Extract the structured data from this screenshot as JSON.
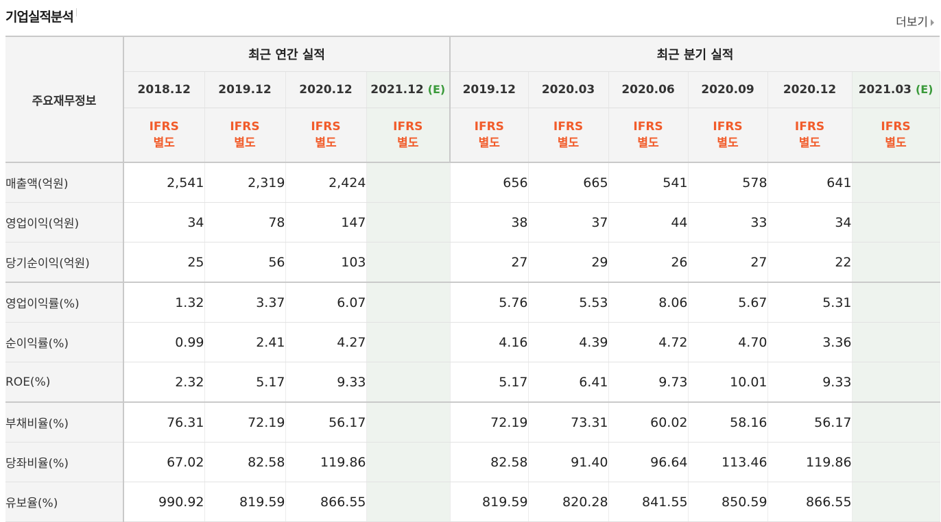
{
  "header": {
    "title": "기업실적분석",
    "more_label": "더보기"
  },
  "table": {
    "corner_label": "주요재무정보",
    "annual_group": "최근 연간 실적",
    "quarter_group": "최근 분기 실적",
    "annual_periods": [
      {
        "date": "2018.12",
        "est": ""
      },
      {
        "date": "2019.12",
        "est": ""
      },
      {
        "date": "2020.12",
        "est": ""
      },
      {
        "date": "2021.12",
        "est": "(E)"
      }
    ],
    "quarter_periods": [
      {
        "date": "2019.12",
        "est": ""
      },
      {
        "date": "2020.03",
        "est": ""
      },
      {
        "date": "2020.06",
        "est": ""
      },
      {
        "date": "2020.09",
        "est": ""
      },
      {
        "date": "2020.12",
        "est": ""
      },
      {
        "date": "2021.03",
        "est": "(E)"
      }
    ],
    "ifrs_line1": "IFRS",
    "ifrs_line2": "별도",
    "rows": [
      {
        "label": "매출액(억원)",
        "annual": [
          "2,541",
          "2,319",
          "2,424",
          ""
        ],
        "quarter": [
          "656",
          "665",
          "541",
          "578",
          "641",
          ""
        ]
      },
      {
        "label": "영업이익(억원)",
        "annual": [
          "34",
          "78",
          "147",
          ""
        ],
        "quarter": [
          "38",
          "37",
          "44",
          "33",
          "34",
          ""
        ]
      },
      {
        "label": "당기순이익(억원)",
        "annual": [
          "25",
          "56",
          "103",
          ""
        ],
        "quarter": [
          "27",
          "29",
          "26",
          "27",
          "22",
          ""
        ]
      },
      {
        "label": "영업이익률(%)",
        "annual": [
          "1.32",
          "3.37",
          "6.07",
          ""
        ],
        "quarter": [
          "5.76",
          "5.53",
          "8.06",
          "5.67",
          "5.31",
          ""
        ]
      },
      {
        "label": "순이익률(%)",
        "annual": [
          "0.99",
          "2.41",
          "4.27",
          ""
        ],
        "quarter": [
          "4.16",
          "4.39",
          "4.72",
          "4.70",
          "3.36",
          ""
        ]
      },
      {
        "label": "ROE(%)",
        "annual": [
          "2.32",
          "5.17",
          "9.33",
          ""
        ],
        "quarter": [
          "5.17",
          "6.41",
          "9.73",
          "10.01",
          "9.33",
          ""
        ]
      },
      {
        "label": "부채비율(%)",
        "annual": [
          "76.31",
          "72.19",
          "56.17",
          ""
        ],
        "quarter": [
          "72.19",
          "73.31",
          "60.02",
          "58.16",
          "56.17",
          ""
        ]
      },
      {
        "label": "당좌비율(%)",
        "annual": [
          "67.02",
          "82.58",
          "119.86",
          ""
        ],
        "quarter": [
          "82.58",
          "91.40",
          "96.64",
          "113.46",
          "119.86",
          ""
        ]
      },
      {
        "label": "유보율(%)",
        "annual": [
          "990.92",
          "819.59",
          "866.55",
          ""
        ],
        "quarter": [
          "819.59",
          "820.28",
          "841.55",
          "850.59",
          "866.55",
          ""
        ]
      }
    ]
  },
  "colors": {
    "ifrs_accent": "#f15b2a",
    "estimate_green": "#3a9a3a",
    "estimate_bg": "#eef3ee"
  }
}
